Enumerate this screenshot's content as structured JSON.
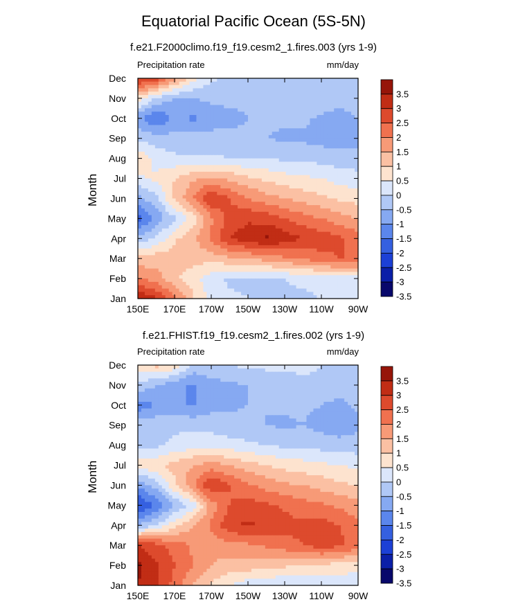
{
  "title": "Equatorial Pacific Ocean (5S-5N)",
  "colors": [
    "#08086b",
    "#0b1fa8",
    "#1c40d6",
    "#3560e0",
    "#5b86ec",
    "#86a9f2",
    "#b0c8f6",
    "#dbe6fb",
    "#fde3cf",
    "#fbc0a3",
    "#f79a77",
    "#f0714f",
    "#dd4a2d",
    "#c12d15",
    "#961509"
  ],
  "chart_data": [
    {
      "type": "heatmap",
      "subtitle": "f.e21.F2000climo.f19_f19.cesm2_1.fires.003 (yrs 1-9)",
      "left_label": "Precipitation rate",
      "right_label": "mm/day",
      "xlabel": "",
      "ylabel": "Month",
      "x_ticks": [
        "150E",
        "170E",
        "170W",
        "150W",
        "130W",
        "110W",
        "90W"
      ],
      "y_ticks": [
        "Jan",
        "Feb",
        "Mar",
        "Apr",
        "May",
        "Jun",
        "Jul",
        "Aug",
        "Sep",
        "Oct",
        "Nov",
        "Dec"
      ],
      "colorbar_labels": [
        "3.5",
        "3",
        "2.5",
        "2",
        "1.5",
        "1",
        "0.5",
        "0",
        "-0.5",
        "-1",
        "-1.5",
        "-2",
        "-2.5",
        "-3",
        "-3.5"
      ],
      "levels": [
        -3.5,
        -3,
        -2.5,
        -2,
        -1.5,
        -1,
        -0.5,
        0,
        0.5,
        1,
        1.5,
        2,
        2.5,
        3,
        3.5
      ],
      "grid": {
        "x_lons": [
          150,
          160,
          170,
          180,
          190,
          200,
          210,
          220,
          230,
          240,
          250,
          260,
          270
        ],
        "rows_jan_to_dec": [
          [
            3.0,
            2.6,
            1.6,
            0.6,
            -0.2,
            -0.4,
            -0.5,
            -0.6,
            -0.6,
            -0.6,
            -0.5,
            -0.4,
            -0.3
          ],
          [
            1.6,
            1.2,
            0.6,
            0.2,
            -0.3,
            -0.6,
            -0.6,
            -0.6,
            -0.5,
            -0.4,
            -0.3,
            -0.2,
            -0.2
          ],
          [
            0.6,
            0.8,
            0.8,
            0.7,
            0.7,
            0.9,
            1.0,
            1.2,
            1.4,
            1.6,
            1.8,
            2.0,
            2.0
          ],
          [
            -0.8,
            -0.4,
            0.4,
            0.9,
            1.6,
            2.5,
            2.8,
            3.1,
            2.8,
            2.5,
            2.3,
            2.1,
            1.8
          ],
          [
            -2.2,
            -1.4,
            -0.6,
            0.2,
            1.4,
            2.2,
            2.4,
            2.3,
            2.0,
            1.7,
            1.5,
            1.2,
            1.0
          ],
          [
            -1.2,
            -0.6,
            0.6,
            1.5,
            2.5,
            2.0,
            1.5,
            1.2,
            1.0,
            0.8,
            0.6,
            0.4,
            0.3
          ],
          [
            -0.1,
            0.1,
            0.5,
            0.9,
            1.1,
            0.9,
            0.6,
            0.4,
            0.2,
            0.1,
            0.0,
            -0.2,
            -0.3
          ],
          [
            0.4,
            -0.2,
            -0.4,
            -0.4,
            -0.4,
            -0.5,
            -0.5,
            -0.5,
            -0.6,
            -0.6,
            -0.7,
            -0.8,
            -0.8
          ],
          [
            -0.6,
            -0.8,
            -0.8,
            -0.8,
            -0.8,
            -0.8,
            -0.9,
            -1.0,
            -1.1,
            -1.1,
            -1.2,
            -1.2,
            -1.2
          ],
          [
            -1.4,
            -2.0,
            -1.4,
            -1.6,
            -1.3,
            -1.2,
            -1.0,
            -0.9,
            -0.9,
            -0.9,
            -1.1,
            -1.3,
            -1.0
          ],
          [
            0.4,
            -0.6,
            -1.0,
            -1.0,
            -0.9,
            -0.8,
            -0.9,
            -0.6,
            -0.6,
            -0.6,
            -0.6,
            -0.7,
            -0.6
          ],
          [
            2.6,
            2.4,
            1.2,
            0.2,
            -0.4,
            -0.6,
            -0.6,
            -0.6,
            -0.6,
            -0.6,
            -0.6,
            -0.6,
            -0.6
          ]
        ]
      }
    },
    {
      "type": "heatmap",
      "subtitle": "f.e21.FHIST.f19_f19.cesm2_1.fires.002 (yrs 1-9)",
      "left_label": "Precipitation rate",
      "right_label": "mm/day",
      "xlabel": "",
      "ylabel": "Month",
      "x_ticks": [
        "150E",
        "170E",
        "170W",
        "150W",
        "130W",
        "110W",
        "90W"
      ],
      "y_ticks": [
        "Jan",
        "Feb",
        "Mar",
        "Apr",
        "May",
        "Jun",
        "Jul",
        "Aug",
        "Sep",
        "Oct",
        "Nov",
        "Dec"
      ],
      "colorbar_labels": [
        "3.5",
        "3",
        "2.5",
        "2",
        "1.5",
        "1",
        "0.5",
        "0",
        "-0.5",
        "-1",
        "-1.5",
        "-2",
        "-2.5",
        "-3",
        "-3.5"
      ],
      "levels": [
        -3.5,
        -3,
        -2.5,
        -2,
        -1.5,
        -1,
        -0.5,
        0,
        0.5,
        1,
        1.5,
        2,
        2.5,
        3,
        3.5
      ],
      "grid": {
        "x_lons": [
          150,
          160,
          170,
          180,
          190,
          200,
          210,
          220,
          230,
          240,
          250,
          260,
          270
        ],
        "rows_jan_to_dec": [
          [
            3.0,
            2.6,
            1.8,
            1.0,
            0.4,
            0.0,
            -0.3,
            -0.4,
            -0.5,
            -0.5,
            -0.5,
            -0.4,
            -0.3
          ],
          [
            3.1,
            2.6,
            2.0,
            1.5,
            1.0,
            0.8,
            0.8,
            0.7,
            0.6,
            0.5,
            0.4,
            0.3,
            0.2
          ],
          [
            2.5,
            2.2,
            1.8,
            1.4,
            1.2,
            1.3,
            1.4,
            1.6,
            1.8,
            2.0,
            2.3,
            2.1,
            1.8
          ],
          [
            -1.0,
            -0.5,
            0.3,
            1.0,
            1.6,
            2.4,
            2.6,
            2.4,
            2.2,
            2.1,
            2.2,
            2.0,
            1.6
          ],
          [
            -2.6,
            -1.9,
            -1.0,
            -0.3,
            1.2,
            2.0,
            2.2,
            2.1,
            1.9,
            1.7,
            1.6,
            1.4,
            1.2
          ],
          [
            -1.4,
            -0.8,
            0.4,
            1.4,
            2.5,
            2.0,
            1.6,
            1.3,
            1.1,
            1.0,
            0.8,
            0.6,
            0.5
          ],
          [
            0.3,
            0.4,
            0.7,
            1.0,
            1.2,
            1.0,
            0.7,
            0.5,
            0.3,
            0.2,
            0.1,
            0.0,
            -0.1
          ],
          [
            -0.6,
            -0.6,
            -0.4,
            -0.2,
            -0.2,
            -0.3,
            -0.4,
            -0.5,
            -0.6,
            -0.6,
            -0.7,
            -0.8,
            -0.8
          ],
          [
            -0.7,
            -0.6,
            -0.6,
            -0.6,
            -0.7,
            -0.8,
            -0.9,
            -1.0,
            -1.1,
            -1.0,
            -1.2,
            -1.3,
            -1.1
          ],
          [
            -1.8,
            -1.5,
            -1.3,
            -1.6,
            -1.2,
            -1.1,
            -1.0,
            -1.0,
            -0.9,
            -0.9,
            -1.0,
            -1.2,
            -0.9
          ],
          [
            -0.6,
            -1.0,
            -1.3,
            -1.6,
            -1.2,
            -1.1,
            -1.0,
            -0.8,
            -0.7,
            -0.6,
            -0.6,
            -0.6,
            -0.5
          ],
          [
            0.2,
            0.7,
            0.4,
            -0.6,
            -0.6,
            -0.5,
            -0.4,
            -0.4,
            -0.4,
            -0.4,
            -0.5,
            -0.5,
            -0.5
          ]
        ]
      }
    }
  ]
}
